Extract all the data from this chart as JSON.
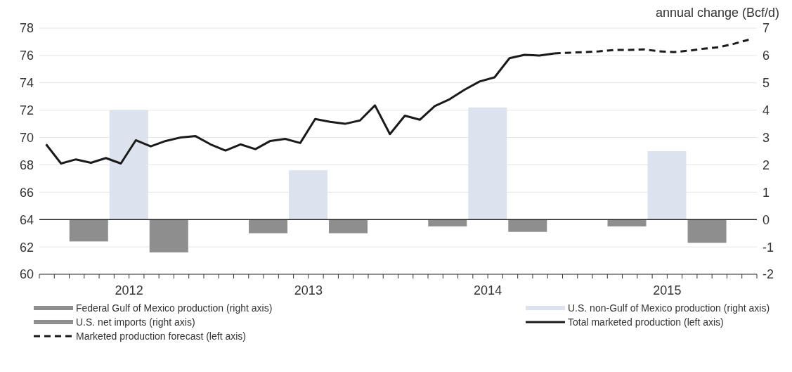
{
  "chart_data": {
    "type": "bar",
    "y2label": "annual change (Bcf/d)",
    "x": [
      "2012-07-01",
      "2013-07-01",
      "2014-07-01",
      "2015-07-01"
    ],
    "series": [
      {
        "name": "Federal Gulf of Mexico production (right axis)",
        "axis": "y2",
        "color": "#8e8e8e",
        "values": [
          -0.8,
          -0.5,
          -0.25,
          -0.25
        ]
      },
      {
        "name": "U.S. non-Gulf of Mexico production (right axis)",
        "axis": "y2",
        "color": "#dde3ee",
        "values": [
          4.0,
          1.8,
          4.1,
          2.5
        ]
      },
      {
        "name": "U.S. net imports (right axis)",
        "axis": "y2",
        "color": "#8e8e8e",
        "values": [
          -1.2,
          -0.5,
          -0.45,
          -0.85
        ]
      },
      {
        "name": "Total marketed production (left axis)",
        "type": "line",
        "color": "#1a1a1a",
        "line_style": "solid",
        "x": [
          "2012-01-15",
          "2012-02-15",
          "2012-03-15",
          "2012-04-15",
          "2012-05-15",
          "2012-06-15",
          "2012-07-15",
          "2012-08-15",
          "2012-09-15",
          "2012-10-15",
          "2012-11-15",
          "2012-12-15",
          "2013-01-15",
          "2013-02-15",
          "2013-03-15",
          "2013-04-15",
          "2013-05-15",
          "2013-06-15",
          "2013-07-15",
          "2013-08-15",
          "2013-09-15",
          "2013-10-15",
          "2013-11-15",
          "2013-12-15",
          "2014-01-15",
          "2014-02-15",
          "2014-03-15",
          "2014-04-15",
          "2014-05-15",
          "2014-06-15",
          "2014-07-15",
          "2014-08-15",
          "2014-09-15",
          "2014-10-15",
          "2014-11-15"
        ],
        "values": [
          69.5,
          68.1,
          68.4,
          68.15,
          68.5,
          68.1,
          69.8,
          69.35,
          69.75,
          70.0,
          70.1,
          69.5,
          69.05,
          69.5,
          69.15,
          69.75,
          69.9,
          69.6,
          71.35,
          71.15,
          71.0,
          71.25,
          72.35,
          70.25,
          71.6,
          71.3,
          72.3,
          72.8,
          73.5,
          74.1,
          74.4,
          75.8,
          76.05,
          76.0,
          76.15
        ]
      },
      {
        "name": "Marketed production forecast (left axis)",
        "type": "line",
        "color": "#1a1a1a",
        "line_style": "dashed",
        "x": [
          "2014-11-15",
          "2014-12-15",
          "2015-01-15",
          "2015-02-15",
          "2015-03-15",
          "2015-04-15",
          "2015-05-15",
          "2015-06-15",
          "2015-07-15",
          "2015-08-15",
          "2015-09-15",
          "2015-10-15",
          "2015-11-15",
          "2015-12-15"
        ],
        "values": [
          76.15,
          76.2,
          76.25,
          76.3,
          76.4,
          76.4,
          76.45,
          76.3,
          76.25,
          76.35,
          76.5,
          76.6,
          76.85,
          77.15
        ]
      }
    ],
    "ylim": [
      60,
      78
    ],
    "yticks": [
      60,
      62,
      64,
      66,
      68,
      70,
      72,
      74,
      76,
      78
    ],
    "y2lim": [
      -2,
      7
    ],
    "y2ticks": [
      -2,
      -1,
      0,
      1,
      2,
      3,
      4,
      5,
      6,
      7
    ],
    "xlim": [
      "2012-01-01",
      "2016-01-01"
    ],
    "xticks": [
      {
        "value": "2012-01-01",
        "label": null
      },
      {
        "value": "2012-02-01",
        "label": null
      },
      {
        "value": "2012-03-01",
        "label": null
      },
      {
        "value": "2012-04-01",
        "label": null
      },
      {
        "value": "2012-05-01",
        "label": null
      },
      {
        "value": "2012-06-01",
        "label": null
      },
      {
        "value": "2012-07-01",
        "label": "2012"
      },
      {
        "value": "2012-08-01",
        "label": null
      },
      {
        "value": "2012-09-01",
        "label": null
      },
      {
        "value": "2012-10-01",
        "label": null
      },
      {
        "value": "2012-11-01",
        "label": null
      },
      {
        "value": "2012-12-01",
        "label": null
      },
      {
        "value": "2013-01-01",
        "label": null
      },
      {
        "value": "2013-02-01",
        "label": null
      },
      {
        "value": "2013-03-01",
        "label": null
      },
      {
        "value": "2013-04-01",
        "label": null
      },
      {
        "value": "2013-05-01",
        "label": null
      },
      {
        "value": "2013-06-01",
        "label": null
      },
      {
        "value": "2013-07-01",
        "label": "2013"
      },
      {
        "value": "2013-08-01",
        "label": null
      },
      {
        "value": "2013-09-01",
        "label": null
      },
      {
        "value": "2013-10-01",
        "label": null
      },
      {
        "value": "2013-11-01",
        "label": null
      },
      {
        "value": "2013-12-01",
        "label": null
      },
      {
        "value": "2014-01-01",
        "label": null
      },
      {
        "value": "2014-02-01",
        "label": null
      },
      {
        "value": "2014-03-01",
        "label": null
      },
      {
        "value": "2014-04-01",
        "label": null
      },
      {
        "value": "2014-05-01",
        "label": null
      },
      {
        "value": "2014-06-01",
        "label": null
      },
      {
        "value": "2014-07-01",
        "label": "2014"
      },
      {
        "value": "2014-08-01",
        "label": null
      },
      {
        "value": "2014-09-01",
        "label": null
      },
      {
        "value": "2014-10-01",
        "label": null
      },
      {
        "value": "2014-11-01",
        "label": null
      },
      {
        "value": "2014-12-01",
        "label": null
      },
      {
        "value": "2015-01-01",
        "label": null
      },
      {
        "value": "2015-02-01",
        "label": null
      },
      {
        "value": "2015-03-01",
        "label": null
      },
      {
        "value": "2015-04-01",
        "label": null
      },
      {
        "value": "2015-05-01",
        "label": null
      },
      {
        "value": "2015-06-01",
        "label": null
      },
      {
        "value": "2015-07-01",
        "label": "2015"
      },
      {
        "value": "2015-08-01",
        "label": null
      },
      {
        "value": "2015-09-01",
        "label": null
      },
      {
        "value": "2015-10-01",
        "label": null
      },
      {
        "value": "2015-11-01",
        "label": null
      },
      {
        "value": "2015-12-01",
        "label": null
      },
      {
        "value": "2016-01-01",
        "label": null
      }
    ],
    "ref_lines": [
      {
        "axis": "y2",
        "value": 0,
        "color": "#222222"
      }
    ],
    "grid": "y",
    "legend": "bottom"
  }
}
